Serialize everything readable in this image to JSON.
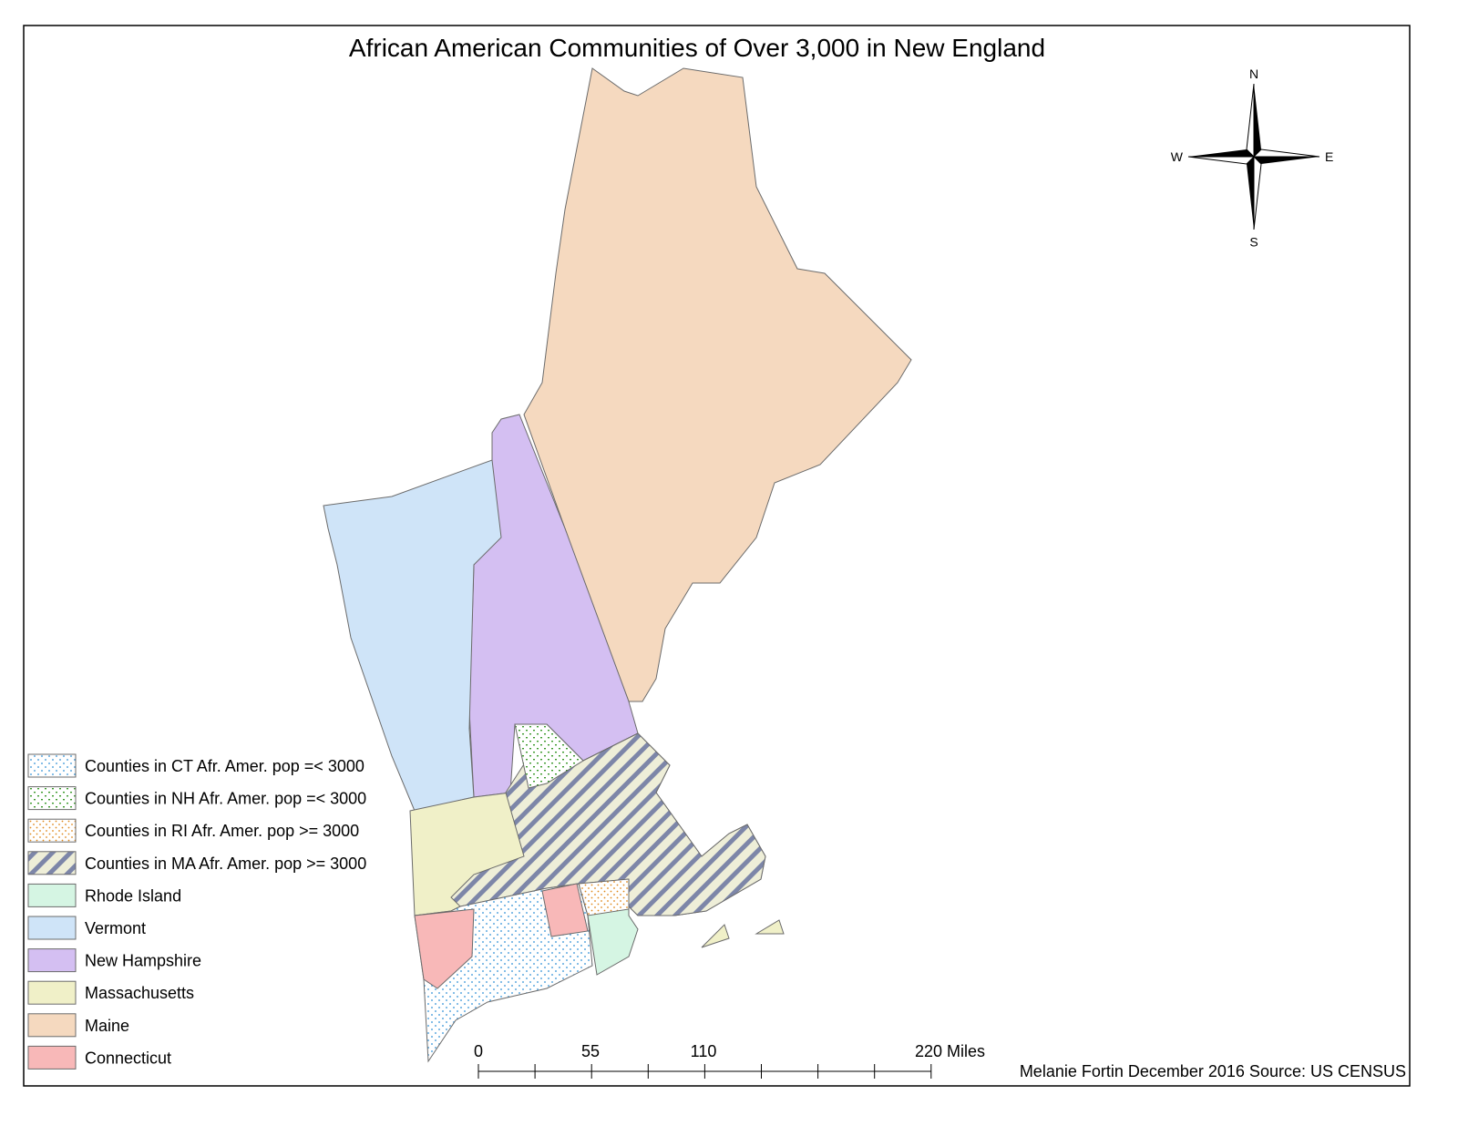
{
  "title": "African American Communities of Over 3,000 in New England",
  "compass": {
    "north": "N",
    "south": "S",
    "east": "E",
    "west": "W"
  },
  "legend": [
    "Counties in CT Afr. Amer. pop =< 3000",
    "Counties in NH Afr. Amer. pop =< 3000",
    "Counties in RI Afr. Amer. pop >= 3000",
    "Counties in MA Afr. Amer. pop >= 3000",
    "Rhode Island",
    "Vermont",
    "New Hampshire",
    "Massachusetts",
    "Maine",
    "Connecticut"
  ],
  "scale_bar": {
    "labels": [
      "0",
      "55",
      "110",
      "220 Miles"
    ]
  },
  "credit": "Melanie Fortin December 2016 Source: US CENSUS"
}
